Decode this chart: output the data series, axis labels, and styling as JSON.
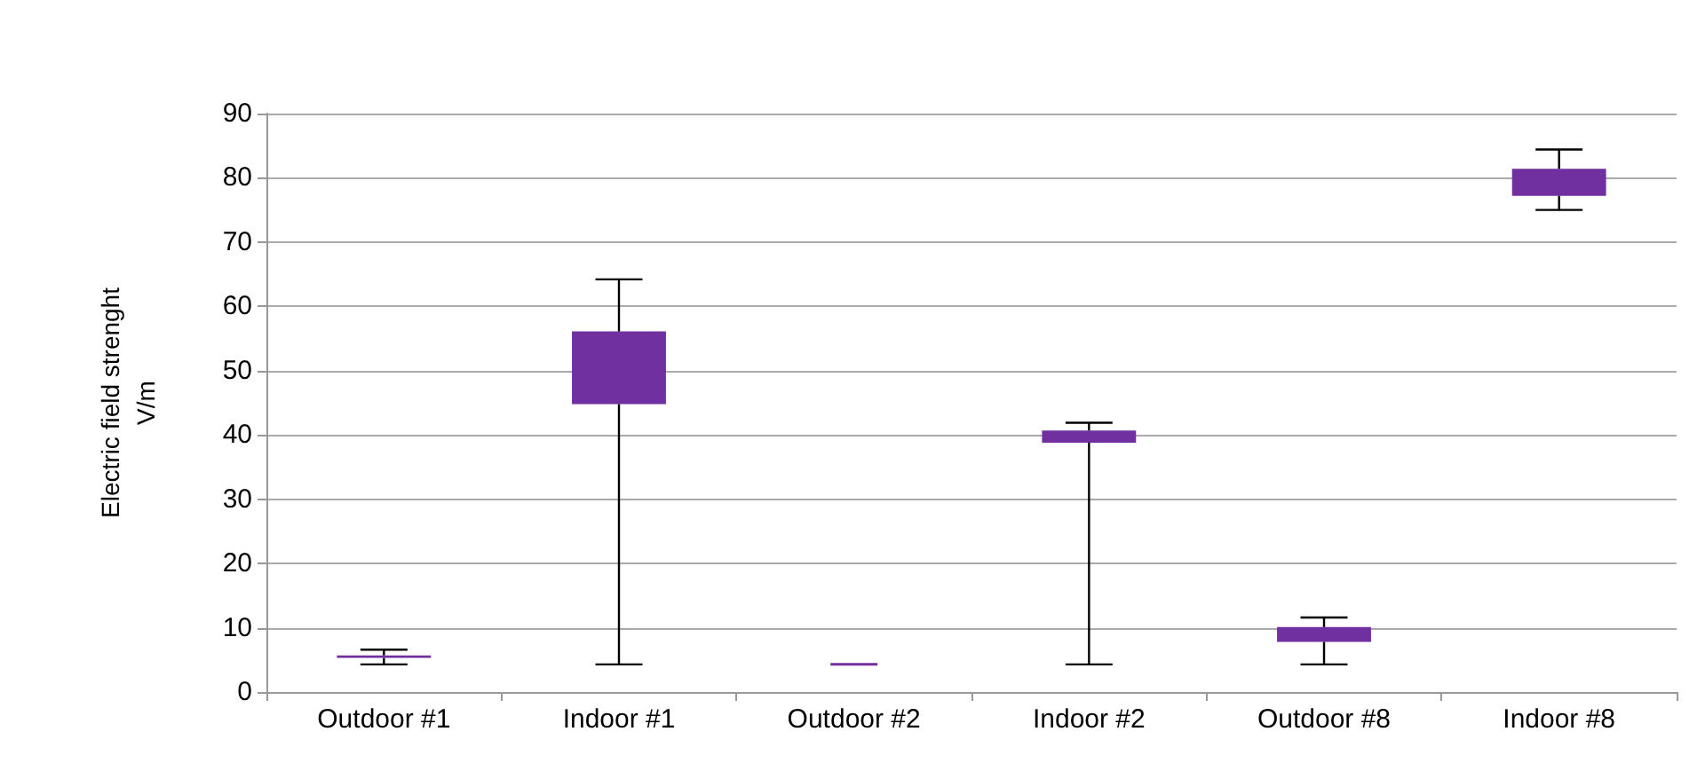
{
  "chart_data": {
    "type": "box",
    "ylabel": "Electric field strenght\nV/m",
    "categories": [
      "Outdoor #1",
      "Indoor #1",
      "Outdoor #2",
      "Indoor #2",
      "Outdoor #8",
      "Indoor #8"
    ],
    "color": "#7030a0",
    "boxes": [
      {
        "low": 4.3,
        "q1": 5.3,
        "q3": 5.7,
        "high": 6.6
      },
      {
        "low": 4.3,
        "q1": 44.8,
        "q3": 56.1,
        "high": 64.2
      },
      {
        "low": 4.3,
        "q1": 4.3,
        "q3": 4.3,
        "high": 4.3
      },
      {
        "low": 4.3,
        "q1": 38.8,
        "q3": 40.7,
        "high": 41.9
      },
      {
        "low": 4.3,
        "q1": 7.8,
        "q3": 10.1,
        "high": 11.6
      },
      {
        "low": 75.0,
        "q1": 77.2,
        "q3": 81.4,
        "high": 84.4
      }
    ],
    "ylim": [
      0,
      90
    ],
    "yticks": [
      0,
      10,
      20,
      30,
      40,
      50,
      60,
      70,
      80,
      90
    ],
    "grid": "y"
  }
}
